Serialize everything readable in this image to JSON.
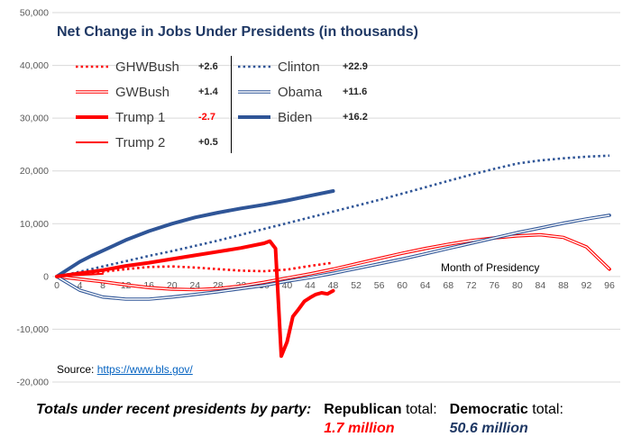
{
  "colors": {
    "republican": "#FF0000",
    "democratic": "#2F5597",
    "title": "#1F3864",
    "grid": "#D9D9D9",
    "axis_text": "#595959",
    "link": "#0563C1"
  },
  "source": {
    "label": "Source:",
    "url_text": "https://www.bls.gov/"
  },
  "footer": {
    "lead": "Totals under recent presidents by party:",
    "republican": {
      "name": "Republican",
      "suffix": " total:",
      "value": "1.7 million",
      "color": "#FF0000"
    },
    "democratic": {
      "name": "Democratic",
      "suffix": " total:",
      "value": "50.6 million",
      "color": "#1F3864"
    }
  },
  "chart_data": {
    "type": "line",
    "title": "Net Change in Jobs Under Presidents (in thousands)",
    "xlabel": "Month of Presidency",
    "ylabel": "",
    "xlim": [
      0,
      96
    ],
    "ylim": [
      -20000,
      50000
    ],
    "grid": "horizontal",
    "legend_position": "top-left, two columns (Republicans | Democrats)",
    "x_ticks": [
      0,
      4,
      8,
      12,
      16,
      20,
      24,
      28,
      32,
      36,
      40,
      44,
      48,
      52,
      56,
      60,
      64,
      68,
      72,
      76,
      80,
      84,
      88,
      92,
      96
    ],
    "y_ticks": [
      -20000,
      -10000,
      0,
      10000,
      20000,
      30000,
      40000,
      50000
    ],
    "legend_columns": [
      [
        "GHWBush",
        "GWBush",
        "Trump 1",
        "Trump 2"
      ],
      [
        "Clinton",
        "Obama",
        "Biden"
      ]
    ],
    "series": [
      {
        "name": "GHWBush",
        "party": "Republican",
        "value_label": "+2.6",
        "value_color": "#262626",
        "color": "#FF0000",
        "style": "dotted",
        "x": [
          0,
          4,
          8,
          12,
          16,
          20,
          24,
          28,
          32,
          36,
          40,
          44,
          48
        ],
        "y": [
          0,
          400,
          900,
          1400,
          1800,
          1900,
          1700,
          1400,
          1100,
          1000,
          1300,
          2000,
          2600
        ]
      },
      {
        "name": "GWBush",
        "party": "Republican",
        "value_label": "+1.4",
        "value_color": "#262626",
        "color": "#FF0000",
        "style": "double",
        "x": [
          0,
          4,
          8,
          12,
          16,
          20,
          24,
          28,
          32,
          36,
          40,
          44,
          48,
          52,
          56,
          60,
          64,
          68,
          72,
          76,
          80,
          84,
          88,
          92,
          96
        ],
        "y": [
          0,
          -500,
          -1000,
          -1600,
          -2100,
          -2400,
          -2500,
          -2300,
          -1800,
          -1100,
          -300,
          500,
          1400,
          2400,
          3400,
          4400,
          5300,
          6100,
          6800,
          7300,
          7700,
          7900,
          7400,
          5600,
          1400
        ]
      },
      {
        "name": "Clinton",
        "party": "Democratic",
        "value_label": "+22.9",
        "value_color": "#262626",
        "color": "#2F5597",
        "style": "dotted",
        "x": [
          0,
          4,
          8,
          12,
          16,
          20,
          24,
          28,
          32,
          36,
          40,
          44,
          48,
          52,
          56,
          60,
          64,
          68,
          72,
          76,
          80,
          84,
          88,
          92,
          96
        ],
        "y": [
          0,
          900,
          1900,
          2900,
          3900,
          4800,
          5800,
          6800,
          7900,
          9000,
          10100,
          11200,
          12300,
          13400,
          14500,
          15700,
          16900,
          18100,
          19300,
          20400,
          21400,
          22000,
          22400,
          22700,
          22900
        ]
      },
      {
        "name": "Obama",
        "party": "Democratic",
        "value_label": "+11.6",
        "value_color": "#262626",
        "color": "#2F5597",
        "style": "double",
        "x": [
          0,
          4,
          8,
          12,
          16,
          20,
          24,
          28,
          32,
          36,
          40,
          44,
          48,
          52,
          56,
          60,
          64,
          68,
          72,
          76,
          80,
          84,
          88,
          92,
          96
        ],
        "y": [
          0,
          -2600,
          -3900,
          -4300,
          -4300,
          -3900,
          -3400,
          -2900,
          -2300,
          -1700,
          -900,
          -200,
          600,
          1500,
          2400,
          3300,
          4300,
          5300,
          6300,
          7300,
          8300,
          9200,
          10100,
          10900,
          11600
        ]
      },
      {
        "name": "Trump 2",
        "party": "Republican",
        "value_label": "+0.5",
        "value_color": "#262626",
        "color": "#FF0000",
        "style": "thin",
        "x": [
          0,
          1,
          2,
          3,
          4,
          5,
          6,
          7,
          8
        ],
        "y": [
          0,
          100,
          180,
          230,
          280,
          330,
          380,
          440,
          500
        ]
      },
      {
        "name": "Biden",
        "party": "Democratic",
        "value_label": "+16.2",
        "value_color": "#262626",
        "color": "#2F5597",
        "style": "thick",
        "x": [
          0,
          2,
          4,
          6,
          8,
          10,
          12,
          16,
          20,
          24,
          28,
          32,
          36,
          40,
          44,
          48
        ],
        "y": [
          0,
          1400,
          2800,
          3900,
          4900,
          5900,
          6900,
          8600,
          10000,
          11200,
          12100,
          12900,
          13600,
          14400,
          15300,
          16200
        ]
      },
      {
        "name": "Trump 1",
        "party": "Republican",
        "value_label": "-2.7",
        "value_color": "#FF0000",
        "color": "#FF0000",
        "style": "thick",
        "x": [
          0,
          2,
          4,
          8,
          12,
          16,
          20,
          24,
          28,
          32,
          36,
          37,
          38,
          39,
          40,
          41,
          42,
          43,
          44,
          45,
          46,
          47,
          48
        ],
        "y": [
          0,
          300,
          600,
          1200,
          2000,
          2600,
          3300,
          4000,
          4700,
          5400,
          6300,
          6700,
          5300,
          -15100,
          -12400,
          -7600,
          -6200,
          -4700,
          -4000,
          -3400,
          -3100,
          -3300,
          -2700
        ]
      }
    ]
  }
}
